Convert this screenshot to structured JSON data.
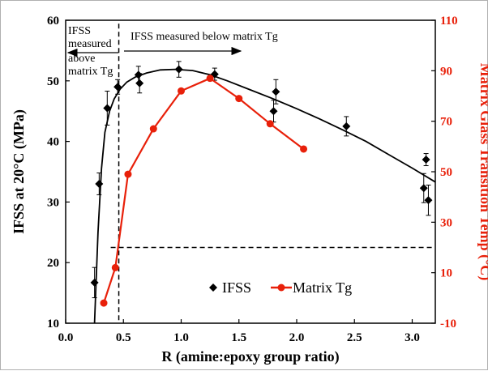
{
  "chart_data": {
    "type": "scatter",
    "xlabel": "R (amine:epoxy group ratio)",
    "ylabel": "IFSS at 20°C (MPa)",
    "y2label": "Matrix Glass Transition Temp (°C)",
    "xlim": [
      0.0,
      3.2
    ],
    "ylim": [
      10,
      60
    ],
    "y2lim": [
      -10,
      110
    ],
    "x_ticks": [
      "0.0",
      "0.5",
      "1.0",
      "1.5",
      "2.0",
      "2.5",
      "3.0"
    ],
    "y_ticks": [
      "10",
      "20",
      "30",
      "40",
      "50",
      "60"
    ],
    "y2_ticks": [
      "-10",
      "10",
      "30",
      "50",
      "70",
      "90",
      "110"
    ],
    "grid": false,
    "legend_position": "bottom-center",
    "colors": {
      "ifss": "#000000",
      "tg": "#e8200a"
    },
    "series": [
      {
        "name": "IFSS",
        "axis": "left",
        "marker": "diamond",
        "x": [
          0.25,
          0.29,
          0.36,
          0.45,
          0.63,
          0.64,
          0.98,
          1.29,
          1.8,
          1.82,
          2.43,
          3.1,
          3.12,
          3.14
        ],
        "y": [
          16.7,
          33.0,
          45.5,
          49.0,
          51.0,
          49.6,
          51.9,
          51.1,
          45.0,
          48.2,
          42.5,
          32.3,
          37.0,
          30.3
        ],
        "err": [
          2.5,
          1.8,
          2.8,
          1.2,
          1.4,
          1.6,
          1.3,
          1.0,
          1.8,
          2.0,
          1.6,
          2.4,
          1.0,
          2.5
        ]
      },
      {
        "name": "Matrix Tg",
        "axis": "right",
        "marker": "circle",
        "x": [
          0.33,
          0.43,
          0.54,
          0.76,
          1.0,
          1.25,
          1.5,
          1.77,
          2.06
        ],
        "y": [
          -2,
          12,
          49,
          67,
          82,
          87,
          79,
          69,
          59
        ]
      }
    ],
    "fit_curve": {
      "series": "IFSS",
      "x": [
        0.25,
        0.28,
        0.31,
        0.34,
        0.38,
        0.42,
        0.47,
        0.53,
        0.6,
        0.7,
        0.82,
        0.95,
        1.1,
        1.25,
        1.4,
        1.6,
        1.8,
        2.0,
        2.2,
        2.4,
        2.6,
        2.8,
        3.0,
        3.2
      ],
      "y": [
        10.0,
        25.0,
        35.5,
        41.5,
        45.0,
        47.0,
        48.6,
        49.8,
        50.6,
        51.3,
        51.8,
        51.9,
        51.7,
        51.0,
        50.0,
        48.5,
        47.0,
        45.4,
        43.7,
        41.9,
        40.0,
        37.8,
        35.6,
        33.3
      ]
    },
    "reference_lines": [
      {
        "orientation": "vertical",
        "style": "dashed",
        "x": 0.46,
        "y_from": 10.5,
        "y_to": 60
      },
      {
        "orientation": "horizontal",
        "style": "dashed",
        "axis": "right",
        "y": 20,
        "x_from": 0.39,
        "x_to": 3.2
      }
    ],
    "annotations": [
      {
        "lines": [
          "IFSS",
          "measured",
          "above",
          "matrix Tg"
        ],
        "arrow": "left"
      },
      {
        "lines": [
          "IFSS measured below matrix Tg"
        ],
        "arrow": "right"
      }
    ]
  }
}
